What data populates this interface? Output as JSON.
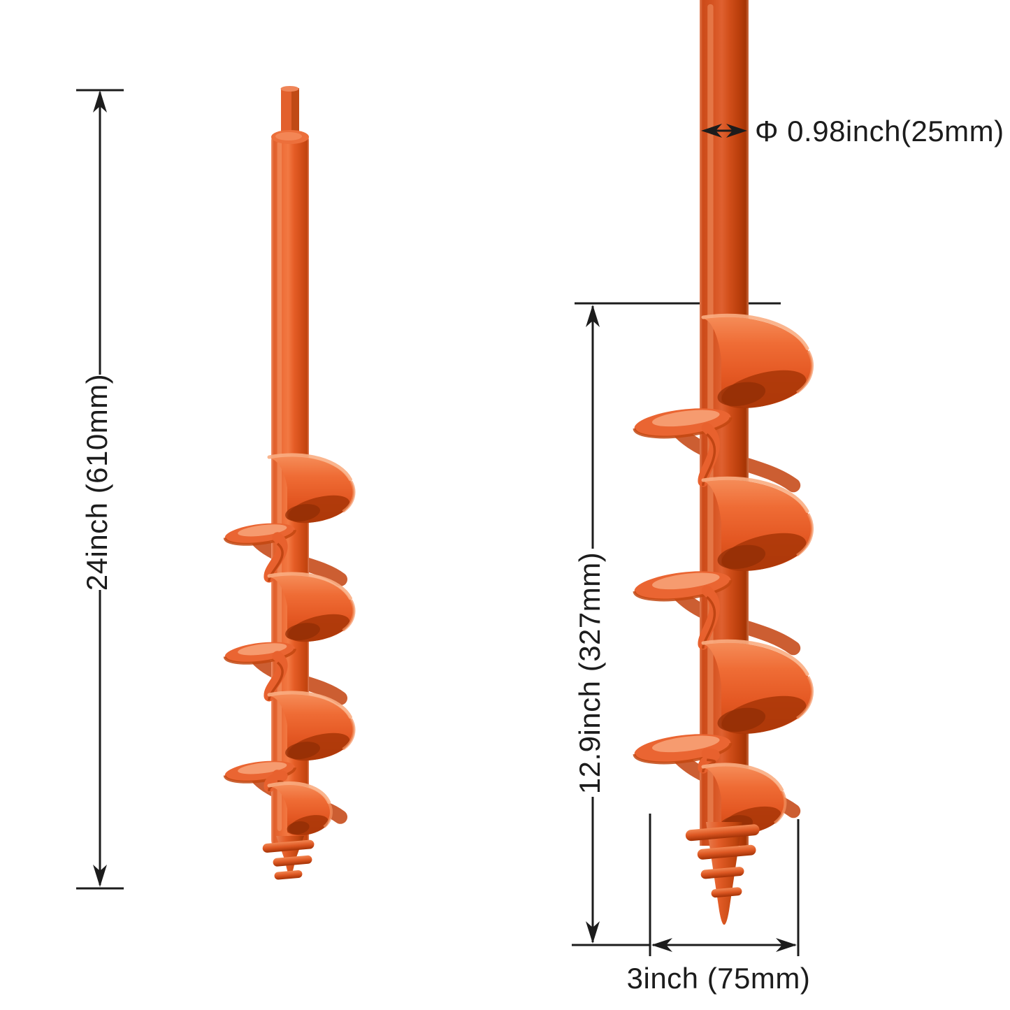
{
  "diagram": {
    "background_color": "#ffffff",
    "product_color": "#e45a24",
    "dimension_line_color": "#1c1c1c",
    "views": {
      "full_view": {
        "description": "full-length garden auger drill bit",
        "height_label": "24inch (610mm)"
      },
      "detail_view": {
        "description": "close-up of auger spiral section",
        "shaft_diameter_label": "Φ 0.98inch(25mm)",
        "spiral_length_label": "12.9inch (327mm)",
        "spiral_diameter_label": "3inch (75mm)"
      }
    }
  }
}
